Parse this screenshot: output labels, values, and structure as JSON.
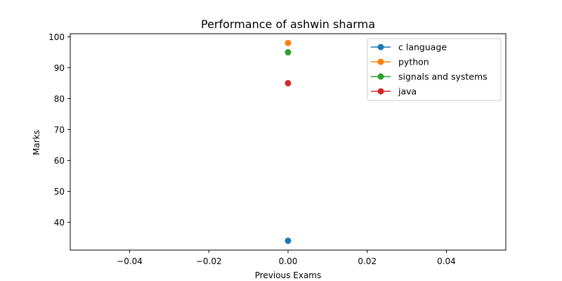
{
  "chart_data": {
    "type": "scatter",
    "title": "Performance of ashwin sharma",
    "xlabel": "Previous Exams",
    "ylabel": "Marks",
    "xlim": [
      -0.055,
      0.055
    ],
    "ylim": [
      31,
      101
    ],
    "xticks": [
      -0.04,
      -0.02,
      0.0,
      0.02,
      0.04
    ],
    "xtick_labels": [
      "−0.04",
      "−0.02",
      "0.00",
      "0.02",
      "0.04"
    ],
    "yticks": [
      40,
      50,
      60,
      70,
      80,
      90,
      100
    ],
    "ytick_labels": [
      "40",
      "50",
      "60",
      "70",
      "80",
      "90",
      "100"
    ],
    "grid": false,
    "legend_position": "upper right",
    "series": [
      {
        "name": "c language",
        "color": "#1f77b4",
        "x": [
          0.0
        ],
        "y": [
          34
        ]
      },
      {
        "name": "python",
        "color": "#ff7f0e",
        "x": [
          0.0
        ],
        "y": [
          98
        ]
      },
      {
        "name": "signals and systems",
        "color": "#2ca02c",
        "x": [
          0.0
        ],
        "y": [
          95
        ]
      },
      {
        "name": "java",
        "color": "#d62728",
        "x": [
          0.0
        ],
        "y": [
          85
        ]
      }
    ]
  }
}
